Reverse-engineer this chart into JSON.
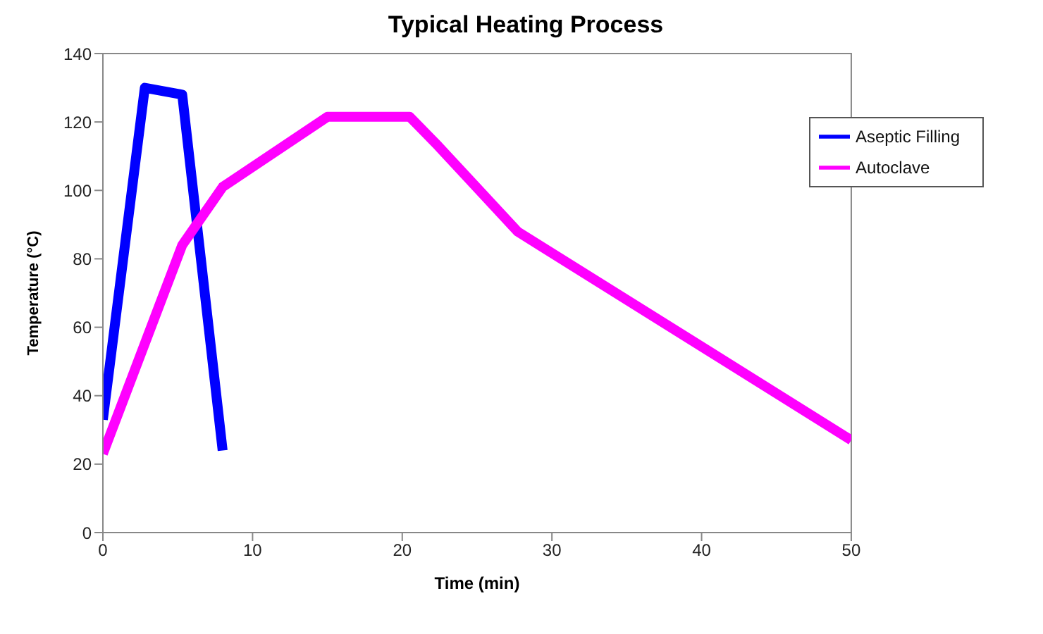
{
  "chart_data": {
    "type": "line",
    "title": "Typical Heating Process",
    "xlabel": "Time (min)",
    "ylabel": "Temperature (°C)",
    "xlim": [
      0,
      50
    ],
    "xticks": [
      0,
      10,
      20,
      30,
      40,
      50
    ],
    "ylim": [
      0,
      140
    ],
    "yticks": [
      0,
      20,
      40,
      60,
      80,
      100,
      120,
      140
    ],
    "grid": false,
    "legend": "top right",
    "marker": "none",
    "line_style": "solid",
    "series": [
      {
        "name": "Aseptic Filling",
        "color": "#0000ff",
        "x": [
          0,
          2.8,
          5.3,
          8
        ],
        "values": [
          33,
          130,
          128,
          24
        ]
      },
      {
        "name": "Autoclave",
        "color": "#ff00ff",
        "x": [
          0,
          5.3,
          8,
          15,
          20.5,
          22.4,
          27.7,
          50
        ],
        "values": [
          23,
          84,
          101,
          121.5,
          121.5,
          113,
          88,
          27
        ]
      }
    ]
  }
}
